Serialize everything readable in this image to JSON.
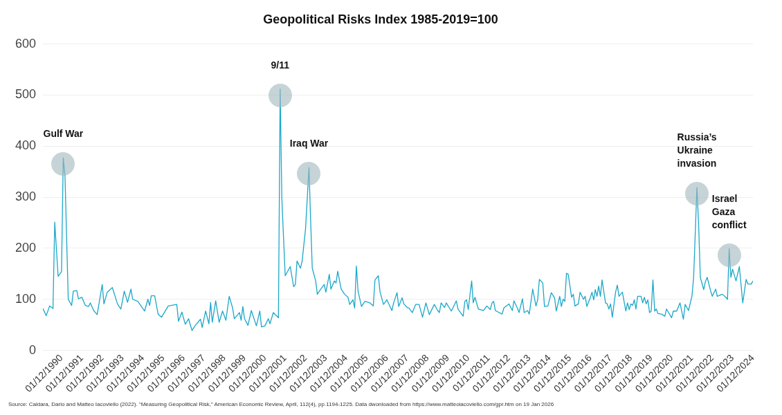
{
  "chart_data": {
    "type": "line",
    "title": "Geopolitical Risks Index 1985-2019=100",
    "x": [
      "1990-01",
      "1990-03",
      "1990-05",
      "1990-07",
      "1990-08",
      "1990-10",
      "1990-12",
      "1991-01",
      "1991-02",
      "1991-04",
      "1991-06",
      "1991-07",
      "1991-09",
      "1991-10",
      "1991-12",
      "1992-02",
      "1992-04",
      "1992-05",
      "1992-07",
      "1992-09",
      "1992-12",
      "1993-01",
      "1993-03",
      "1993-06",
      "1993-09",
      "1993-11",
      "1994-01",
      "1994-03",
      "1994-05",
      "1994-06",
      "1994-09",
      "1995-01",
      "1995-03",
      "1995-04",
      "1995-05",
      "1995-07",
      "1995-09",
      "1995-11",
      "1996-03",
      "1996-08",
      "1996-09",
      "1996-11",
      "1997-01",
      "1997-03",
      "1997-05",
      "1997-07",
      "1997-10",
      "1997-11",
      "1998-01",
      "1998-03",
      "1998-04",
      "1998-05",
      "1998-07",
      "1998-09",
      "1998-11",
      "1999-01",
      "1999-03",
      "1999-05",
      "1999-06",
      "1999-09",
      "1999-10",
      "1999-11",
      "1999-12",
      "2000-02",
      "2000-04",
      "2000-07",
      "2000-09",
      "2000-10",
      "2000-12",
      "2001-02",
      "2001-03",
      "2001-05",
      "2001-08",
      "2001-09",
      "2001-10",
      "2001-11",
      "2001-12",
      "2002-03",
      "2002-05",
      "2002-06",
      "2002-07",
      "2002-09",
      "2002-10",
      "2002-12",
      "2003-02",
      "2003-03",
      "2003-04",
      "2003-06",
      "2003-07",
      "2003-09",
      "2003-11",
      "2003-12",
      "2004-02",
      "2004-03",
      "2004-05",
      "2004-06",
      "2004-07",
      "2004-09",
      "2004-11",
      "2005-01",
      "2005-02",
      "2005-04",
      "2005-05",
      "2005-06",
      "2005-07",
      "2005-09",
      "2005-11",
      "2006-02",
      "2006-04",
      "2006-05",
      "2006-07",
      "2006-08",
      "2006-10",
      "2006-12",
      "2007-03",
      "2007-04",
      "2007-06",
      "2007-07",
      "2007-09",
      "2007-10",
      "2007-12",
      "2008-01",
      "2008-03",
      "2008-05",
      "2008-07",
      "2008-09",
      "2008-11",
      "2009-01",
      "2009-04",
      "2009-06",
      "2009-07",
      "2009-08",
      "2009-10",
      "2009-11",
      "2010-02",
      "2010-05",
      "2010-06",
      "2010-09",
      "2010-10",
      "2010-11",
      "2010-12",
      "2011-02",
      "2011-03",
      "2011-04",
      "2011-06",
      "2011-09",
      "2011-11",
      "2012-01",
      "2012-02",
      "2012-03",
      "2012-04",
      "2012-08",
      "2012-09",
      "2012-12",
      "2013-02",
      "2013-03",
      "2013-05",
      "2013-06",
      "2013-08",
      "2013-09",
      "2013-11",
      "2013-12",
      "2014-02",
      "2014-04",
      "2014-05",
      "2014-06",
      "2014-08",
      "2014-09",
      "2014-11",
      "2015-01",
      "2015-03",
      "2015-04",
      "2015-06",
      "2015-07",
      "2015-08",
      "2015-09",
      "2015-10",
      "2015-11",
      "2016-01",
      "2016-02",
      "2016-03",
      "2016-05",
      "2016-06",
      "2016-08",
      "2016-09",
      "2016-10",
      "2016-12",
      "2017-01",
      "2017-02",
      "2017-03",
      "2017-04",
      "2017-05",
      "2017-06",
      "2017-07",
      "2017-09",
      "2017-10",
      "2017-11",
      "2017-12",
      "2018-01",
      "2018-03",
      "2018-04",
      "2018-05",
      "2018-07",
      "2018-09",
      "2018-10",
      "2018-11",
      "2018-12",
      "2019-01",
      "2019-02",
      "2019-03",
      "2019-04",
      "2019-06",
      "2019-07",
      "2019-08",
      "2019-09",
      "2019-10",
      "2019-11",
      "2019-12",
      "2020-01",
      "2020-02",
      "2020-03",
      "2020-04",
      "2020-06",
      "2020-08",
      "2020-09",
      "2020-12",
      "2021-01",
      "2021-03",
      "2021-05",
      "2021-07",
      "2021-08",
      "2021-10",
      "2021-12",
      "2022-01",
      "2022-03",
      "2022-04",
      "2022-05",
      "2022-07",
      "2022-08",
      "2022-09",
      "2022-11",
      "2022-12",
      "2023-02",
      "2023-03",
      "2023-06",
      "2023-08",
      "2023-09",
      "2023-10",
      "2023-11",
      "2023-12",
      "2024-02",
      "2024-04",
      "2024-06",
      "2024-08",
      "2024-09",
      "2024-11",
      "2024-12"
    ],
    "series": [
      {
        "color": "#1aa7c9",
        "values": [
          82,
          68,
          87,
          82,
          251,
          145,
          154,
          377,
          342,
          100,
          88,
          116,
          117,
          101,
          104,
          88,
          86,
          93,
          78,
          70,
          129,
          91,
          114,
          123,
          91,
          81,
          116,
          94,
          120,
          100,
          96,
          77,
          100,
          88,
          107,
          107,
          71,
          65,
          87,
          90,
          57,
          75,
          51,
          62,
          39,
          49,
          61,
          45,
          77,
          52,
          94,
          55,
          97,
          55,
          77,
          59,
          106,
          83,
          62,
          74,
          59,
          86,
          62,
          49,
          78,
          48,
          77,
          46,
          48,
          62,
          52,
          74,
          64,
          512,
          299,
          220,
          146,
          164,
          125,
          129,
          175,
          161,
          175,
          238,
          358,
          259,
          161,
          136,
          110,
          120,
          129,
          114,
          149,
          120,
          136,
          132,
          155,
          120,
          110,
          104,
          90,
          99,
          83,
          165,
          116,
          86,
          96,
          93,
          87,
          138,
          146,
          114,
          90,
          99,
          78,
          93,
          113,
          86,
          103,
          91,
          84,
          83,
          74,
          90,
          90,
          65,
          93,
          70,
          90,
          78,
          74,
          93,
          84,
          93,
          77,
          97,
          81,
          67,
          96,
          99,
          80,
          136,
          93,
          104,
          81,
          78,
          87,
          80,
          93,
          96,
          78,
          71,
          83,
          91,
          78,
          97,
          83,
          74,
          101,
          74,
          78,
          71,
          120,
          87,
          99,
          139,
          132,
          86,
          87,
          113,
          103,
          77,
          106,
          86,
          100,
          96,
          151,
          149,
          104,
          110,
          87,
          91,
          114,
          100,
          106,
          86,
          103,
          114,
          99,
          119,
          106,
          126,
          106,
          138,
          93,
          91,
          81,
          91,
          65,
          114,
          128,
          106,
          114,
          77,
          93,
          80,
          91,
          88,
          99,
          81,
          106,
          106,
          93,
          104,
          91,
          99,
          74,
          77,
          138,
          77,
          81,
          72,
          71,
          67,
          81,
          64,
          77,
          77,
          93,
          61,
          90,
          78,
          106,
          143,
          319,
          245,
          143,
          119,
          135,
          143,
          117,
          106,
          120,
          106,
          110,
          104,
          100,
          199,
          143,
          159,
          136,
          164,
          93,
          139,
          130,
          130,
          136
        ]
      }
    ],
    "xlim": [
      "1990-01",
      "2024-12"
    ],
    "xticks": [
      {
        "value": "1990-12",
        "label": "01/12/1990"
      },
      {
        "value": "1991-12",
        "label": "01/12/1991"
      },
      {
        "value": "1992-12",
        "label": "01/12/1992"
      },
      {
        "value": "1993-12",
        "label": "01/12/1993"
      },
      {
        "value": "1994-12",
        "label": "01/12/1994"
      },
      {
        "value": "1995-12",
        "label": "01/12/1995"
      },
      {
        "value": "1996-12",
        "label": "01/12/1996"
      },
      {
        "value": "1997-12",
        "label": "01/12/1997"
      },
      {
        "value": "1998-12",
        "label": "01/12/1998"
      },
      {
        "value": "1999-12",
        "label": "01/12/1999"
      },
      {
        "value": "2000-12",
        "label": "01/12/2000"
      },
      {
        "value": "2001-12",
        "label": "01/12/2001"
      },
      {
        "value": "2002-12",
        "label": "01/12/2002"
      },
      {
        "value": "2003-12",
        "label": "01/12/2003"
      },
      {
        "value": "2004-12",
        "label": "01/12/2004"
      },
      {
        "value": "2005-12",
        "label": "01/12/2005"
      },
      {
        "value": "2006-12",
        "label": "01/12/2006"
      },
      {
        "value": "2007-12",
        "label": "01/12/2007"
      },
      {
        "value": "2008-12",
        "label": "01/12/2008"
      },
      {
        "value": "2009-12",
        "label": "01/12/2009"
      },
      {
        "value": "2010-12",
        "label": "01/12/2010"
      },
      {
        "value": "2011-12",
        "label": "01/12/2011"
      },
      {
        "value": "2012-12",
        "label": "01/12/2012"
      },
      {
        "value": "2013-12",
        "label": "01/12/2013"
      },
      {
        "value": "2014-12",
        "label": "01/12/2014"
      },
      {
        "value": "2015-12",
        "label": "01/12/2015"
      },
      {
        "value": "2016-12",
        "label": "01/12/2016"
      },
      {
        "value": "2017-12",
        "label": "01/12/2017"
      },
      {
        "value": "2018-12",
        "label": "01/12/2018"
      },
      {
        "value": "2019-12",
        "label": "01/12/2019"
      },
      {
        "value": "2020-12",
        "label": "01/12/2020"
      },
      {
        "value": "2021-12",
        "label": "01/12/2021"
      },
      {
        "value": "2022-12",
        "label": "01/12/2022"
      },
      {
        "value": "2023-12",
        "label": "01/12/2023"
      },
      {
        "value": "2024-12",
        "label": "01/12/2024"
      }
    ],
    "ylim": [
      0,
      600
    ],
    "yticks": [
      0,
      100,
      200,
      300,
      400,
      500,
      600
    ],
    "grid": "y",
    "marker": "none",
    "line_style": "solid",
    "annotations": [
      {
        "text": "Gulf War",
        "x": "1991-01",
        "y": 377
      },
      {
        "text": "9/11",
        "x": "2001-09",
        "y": 512
      },
      {
        "text": "Iraq War",
        "x": "2003-02",
        "y": 358
      },
      {
        "text": "Russia’s Ukraine invasion",
        "x": "2022-03",
        "y": 319
      },
      {
        "text": "Israel Gaza conflict",
        "x": "2023-10",
        "y": 199
      },
      "Source: Caldara, Dario and Matteo Iacoviello (2022). “Measuring Geopolitical Risk,” American Economic Review, April, 112(4), pp.1194-1225. Data dwonloaded from https://www.matteoiacoviello.com/gpr.htm on 19 Jan 2026"
    ]
  }
}
